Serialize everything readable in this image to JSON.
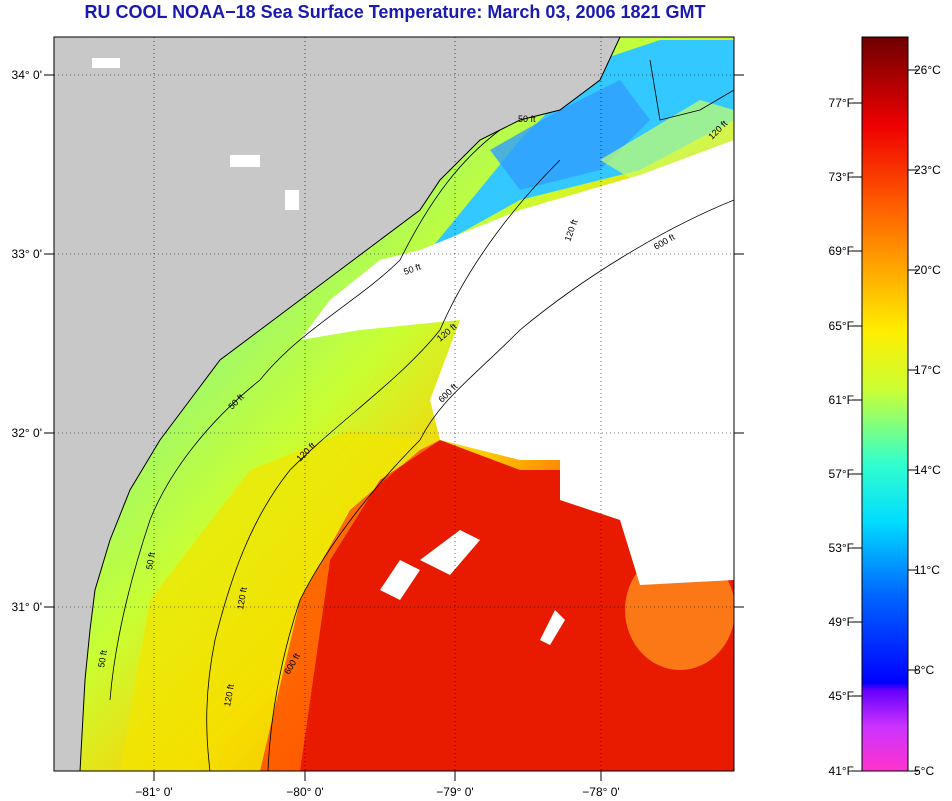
{
  "title": "RU COOL  NOAA−18  Sea Surface Temperature:  March 03, 2006 1821 GMT",
  "map": {
    "lat_labels": [
      "34° 0'",
      "33° 0'",
      "32° 0'",
      "31° 0'"
    ],
    "lon_labels": [
      "−81° 0'",
      "−80° 0'",
      "−79° 0'",
      "−78° 0'"
    ],
    "contour_labels": [
      "50 ft",
      "120 ft",
      "50 ft",
      "120 ft",
      "600 ft",
      "120 ft",
      "600 ft",
      "50 ft",
      "120 ft",
      "50 ft",
      "120 ft",
      "600 ft",
      "50 ft",
      "120 ft"
    ]
  },
  "colorbar": {
    "fahrenheit_labels": [
      "77°F",
      "73°F",
      "69°F",
      "65°F",
      "61°F",
      "57°F",
      "53°F",
      "49°F",
      "45°F",
      "41°F"
    ],
    "celsius_labels": [
      "26°C",
      "23°C",
      "20°C",
      "17°C",
      "14°C",
      "11°C",
      "8°C",
      "5°C"
    ],
    "colors": [
      "#7a0000",
      "#cc0000",
      "#ff2200",
      "#ff7700",
      "#ffcc00",
      "#ccff33",
      "#33ffcc",
      "#00ddff",
      "#0066ff",
      "#0000ff",
      "#9933ff",
      "#ff33cc"
    ]
  },
  "colors": {
    "land": "#c8c8c8",
    "cloud": "#ffffff",
    "title": "#1a1ab0"
  }
}
